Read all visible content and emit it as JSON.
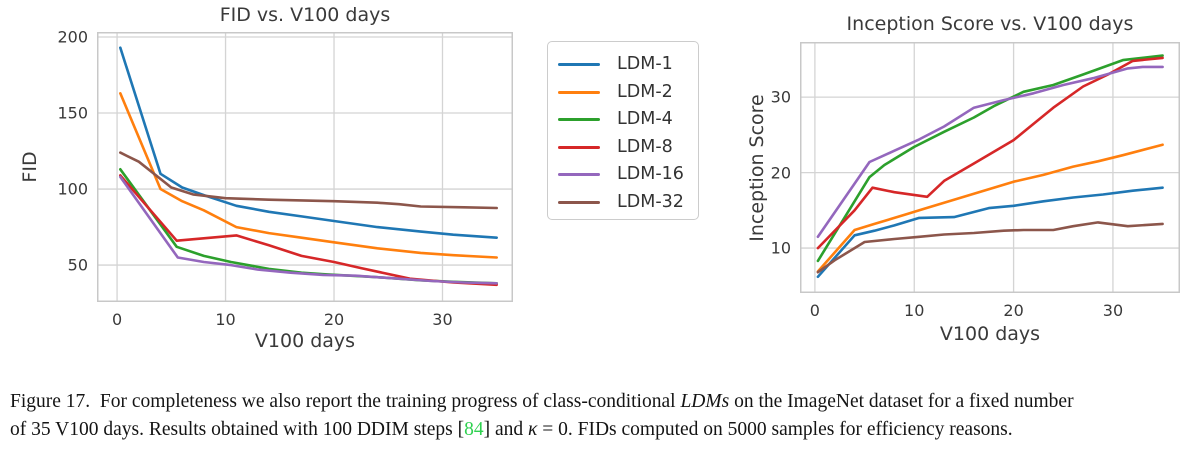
{
  "colors": {
    "grid": "#d4d4d4",
    "spine": "#c8c8c8",
    "tick_text": "#3a3a3a",
    "cite_green": "#2fd150",
    "ldm1": "#1f77b4",
    "ldm2": "#ff7f0e",
    "ldm4": "#2ca02c",
    "ldm8": "#d62728",
    "ldm16": "#9467bd",
    "ldm32": "#8c564b"
  },
  "legend": {
    "entries": [
      {
        "label": "LDM-1",
        "color": "#1f77b4"
      },
      {
        "label": "LDM-2",
        "color": "#ff7f0e"
      },
      {
        "label": "LDM-4",
        "color": "#2ca02c"
      },
      {
        "label": "LDM-8",
        "color": "#d62728"
      },
      {
        "label": "LDM-16",
        "color": "#9467bd"
      },
      {
        "label": "LDM-32",
        "color": "#8c564b"
      }
    ]
  },
  "chart_data": [
    {
      "type": "line",
      "name": "fid-vs-v100-days",
      "title": "FID vs. V100 days",
      "xlabel": "V100 days",
      "ylabel": "FID",
      "xlim": [
        -1.85,
        36.5
      ],
      "ylim": [
        25.7,
        203.3
      ],
      "xticks": [
        0,
        10,
        20,
        30
      ],
      "yticks": [
        50,
        100,
        150,
        200
      ],
      "grid": true,
      "legend_position": "outside-right",
      "series": [
        {
          "name": "LDM-1",
          "color": "#1f77b4",
          "x": [
            0.3,
            4,
            6,
            8,
            11,
            14,
            17,
            20,
            24,
            28,
            31,
            35
          ],
          "y": [
            193,
            110,
            101,
            96,
            89,
            85,
            82,
            79,
            75,
            72,
            70,
            68
          ]
        },
        {
          "name": "LDM-2",
          "color": "#ff7f0e",
          "x": [
            0.3,
            4,
            6,
            8,
            11,
            14,
            17,
            20,
            24,
            28,
            31,
            35
          ],
          "y": [
            163,
            100,
            92,
            86,
            75,
            71,
            68,
            65,
            61,
            58,
            56.5,
            55
          ]
        },
        {
          "name": "LDM-4",
          "color": "#2ca02c",
          "x": [
            0.3,
            5.5,
            8,
            10.5,
            14,
            17,
            19,
            24,
            28,
            31,
            35
          ],
          "y": [
            113,
            62,
            56,
            52,
            47.5,
            45,
            44,
            42,
            40,
            39,
            38
          ]
        },
        {
          "name": "LDM-8",
          "color": "#d62728",
          "x": [
            0.3,
            5.5,
            11,
            14,
            17,
            20,
            22.5,
            27,
            31,
            35
          ],
          "y": [
            109,
            66,
            69.5,
            63,
            56,
            52,
            48,
            41,
            38.5,
            37
          ]
        },
        {
          "name": "LDM-16",
          "color": "#9467bd",
          "x": [
            0.3,
            5.6,
            8,
            10.5,
            13,
            16,
            19,
            22,
            26,
            29,
            32,
            35
          ],
          "y": [
            108,
            55,
            52,
            50,
            47,
            45,
            43.5,
            43,
            41,
            39.5,
            38.5,
            38
          ]
        },
        {
          "name": "LDM-32",
          "color": "#8c564b",
          "x": [
            0.3,
            2,
            5,
            7,
            10,
            14,
            20,
            24,
            26,
            28,
            32,
            35
          ],
          "y": [
            124,
            118,
            101,
            96.5,
            94,
            93,
            92,
            91,
            90,
            88.5,
            88,
            87.5
          ]
        }
      ]
    },
    {
      "type": "line",
      "name": "inception-score-vs-v100-days",
      "title": "Inception Score vs. V100 days",
      "xlabel": "V100 days",
      "ylabel": "Inception Score",
      "xlim": [
        -1.5,
        36.75
      ],
      "ylim": [
        4.05,
        37.3
      ],
      "xticks": [
        0,
        10,
        20,
        30
      ],
      "yticks": [
        10,
        20,
        30
      ],
      "grid": true,
      "series": [
        {
          "name": "LDM-1",
          "color": "#1f77b4",
          "x": [
            0.3,
            4,
            6,
            8,
            10.5,
            14,
            17.5,
            20,
            23,
            26,
            29,
            32,
            35
          ],
          "y": [
            6.2,
            11.7,
            12.3,
            13.0,
            14.0,
            14.1,
            15.3,
            15.6,
            16.2,
            16.7,
            17.1,
            17.6,
            18.0
          ]
        },
        {
          "name": "LDM-2",
          "color": "#ff7f0e",
          "x": [
            0.3,
            4,
            6,
            9,
            11,
            14,
            17,
            20,
            23,
            26,
            28.5,
            31,
            35
          ],
          "y": [
            6.9,
            12.4,
            13.2,
            14.4,
            15.2,
            16.4,
            17.6,
            18.8,
            19.7,
            20.8,
            21.5,
            22.3,
            23.7
          ]
        },
        {
          "name": "LDM-4",
          "color": "#2ca02c",
          "x": [
            0.3,
            5.5,
            7,
            10,
            13,
            16,
            18,
            21,
            24,
            27,
            31,
            35
          ],
          "y": [
            8.3,
            19.4,
            21.0,
            23.4,
            25.4,
            27.3,
            28.8,
            30.7,
            31.6,
            33.0,
            34.9,
            35.5
          ]
        },
        {
          "name": "LDM-8",
          "color": "#d62728",
          "x": [
            0.3,
            4,
            5.8,
            8,
            11.3,
            13,
            16,
            20,
            24,
            27,
            29.5,
            32,
            35
          ],
          "y": [
            10.0,
            15.0,
            18.0,
            17.4,
            16.8,
            18.9,
            21.2,
            24.3,
            28.6,
            31.4,
            33.0,
            34.8,
            35.2
          ]
        },
        {
          "name": "LDM-16",
          "color": "#9467bd",
          "x": [
            0.3,
            5.5,
            8,
            10.5,
            13,
            16,
            19,
            22,
            25,
            28,
            31.5,
            33,
            35
          ],
          "y": [
            11.5,
            21.4,
            22.9,
            24.4,
            26.1,
            28.6,
            29.6,
            30.5,
            31.6,
            32.5,
            33.8,
            34.0,
            34.0
          ]
        },
        {
          "name": "LDM-32",
          "color": "#8c564b",
          "x": [
            0.3,
            2,
            5,
            8,
            10.5,
            13,
            16,
            19,
            21,
            24,
            26,
            28.5,
            31.5,
            35
          ],
          "y": [
            6.8,
            8.4,
            10.8,
            11.2,
            11.5,
            11.8,
            12.0,
            12.3,
            12.4,
            12.4,
            12.9,
            13.4,
            12.9,
            13.2
          ]
        }
      ]
    }
  ],
  "caption": {
    "figure_label": "Figure 17.",
    "lines": [
      [
        {
          "t": "Figure 17.  For completeness we also report the training progress of class-conditional ",
          "s": "n"
        },
        {
          "t": "LDMs",
          "s": "i"
        },
        {
          "t": " on the ImageNet dataset for a fixed number",
          "s": "n"
        }
      ],
      [
        {
          "t": "of 35 V100 days. Results obtained with 100 DDIM steps [",
          "s": "n"
        },
        {
          "t": "84",
          "s": "c"
        },
        {
          "t": "] and ",
          "s": "n"
        },
        {
          "t": "κ",
          "s": "i"
        },
        {
          "t": " = 0. FIDs computed on 5000 samples for efficiency reasons.",
          "s": "n"
        }
      ]
    ]
  }
}
